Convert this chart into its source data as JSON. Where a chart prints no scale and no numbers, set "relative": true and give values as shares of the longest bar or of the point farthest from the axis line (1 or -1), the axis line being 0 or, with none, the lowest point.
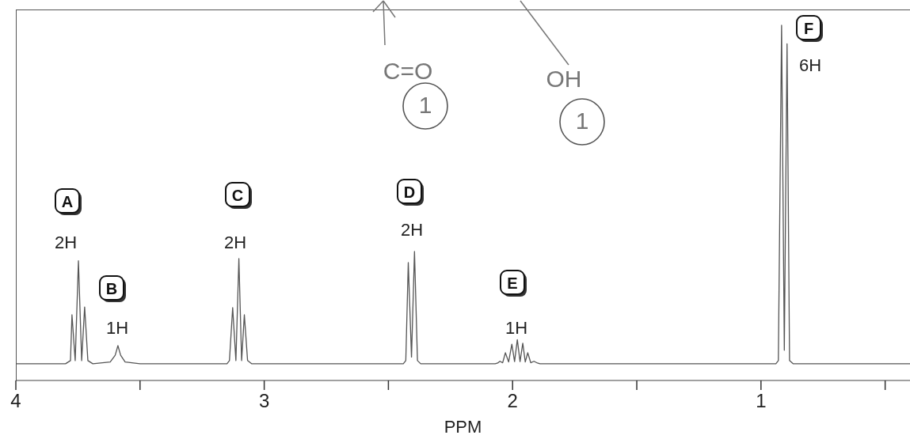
{
  "chart_data": {
    "type": "line",
    "relative": true,
    "xlabel": "PPM",
    "xlim": [
      4,
      0.4
    ],
    "xticks": [
      4,
      {
        "value": 3.5,
        "label": null
      },
      3,
      {
        "value": 2.5,
        "label": null
      },
      2,
      {
        "value": 1.5,
        "label": null
      },
      1,
      {
        "value": 0.5,
        "label": null
      }
    ],
    "x": [
      4.0,
      3.8,
      3.78,
      3.774,
      3.761,
      3.748,
      3.735,
      3.723,
      3.71,
      3.69,
      3.62,
      3.6,
      3.589,
      3.578,
      3.56,
      3.5,
      3.15,
      3.14,
      3.127,
      3.114,
      3.102,
      3.091,
      3.08,
      3.067,
      3.05,
      2.44,
      2.43,
      2.42,
      2.407,
      2.395,
      2.383,
      2.37,
      2.07,
      2.06,
      2.051,
      2.04,
      2.029,
      2.016,
      2.003,
      1.992,
      1.981,
      1.97,
      1.959,
      1.949,
      1.939,
      1.927,
      1.914,
      1.9,
      1.89,
      0.94,
      0.93,
      0.917,
      0.906,
      0.895,
      0.885,
      0.87,
      0.4
    ],
    "values": [
      0.047,
      0.047,
      0.056,
      0.185,
      0.056,
      0.337,
      0.056,
      0.207,
      0.056,
      0.047,
      0.052,
      0.071,
      0.098,
      0.071,
      0.052,
      0.047,
      0.047,
      0.056,
      0.205,
      0.056,
      0.343,
      0.056,
      0.185,
      0.056,
      0.047,
      0.047,
      0.056,
      0.332,
      0.066,
      0.363,
      0.056,
      0.047,
      0.047,
      0.049,
      0.054,
      0.05,
      0.078,
      0.052,
      0.102,
      0.053,
      0.115,
      0.053,
      0.105,
      0.052,
      0.078,
      0.05,
      0.054,
      0.049,
      0.047,
      0.047,
      0.056,
      1,
      0.085,
      0.948,
      0.056,
      0.047,
      0.047
    ],
    "color": "#555555",
    "marker": "none",
    "line_style": "solid",
    "annotations": [
      "A",
      "2H",
      "B",
      "1H",
      "C",
      "2H",
      "D",
      "2H",
      "E",
      "1H",
      "F",
      "6H",
      "C=O",
      "1",
      "OH",
      "1"
    ]
  }
}
